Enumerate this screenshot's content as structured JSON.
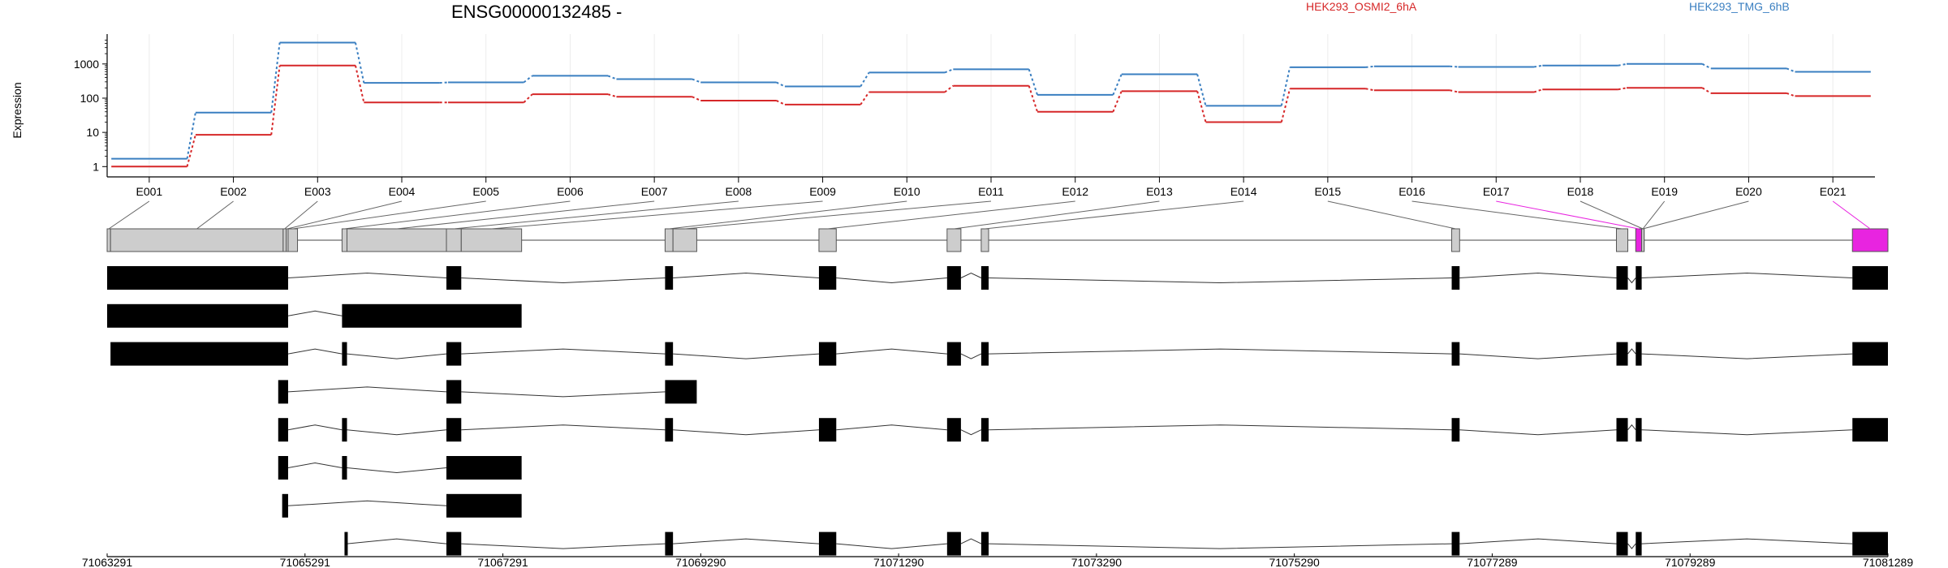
{
  "chart_data": {
    "type": "line",
    "title": "ENSG00000132485 -",
    "ylabel": "Expression",
    "y_scale": "log10",
    "ylim": [
      0.5,
      6000
    ],
    "y_ticks": [
      1,
      10,
      100,
      1000
    ],
    "y_tick_labels": [
      "1",
      "10",
      "100",
      "1000"
    ],
    "grid": "vertical, light",
    "legend": "top-right",
    "categories": [
      "E001",
      "E002",
      "E003",
      "E004",
      "E005",
      "E006",
      "E007",
      "E008",
      "E009",
      "E010",
      "E011",
      "E012",
      "E013",
      "E014",
      "E015",
      "E016",
      "E017",
      "E018",
      "E019",
      "E020",
      "E021"
    ],
    "series": [
      {
        "name": "HEK293_OSMI2_6hA",
        "color": "#d62728",
        "values": [
          1,
          8.5,
          900,
          75,
          75,
          130,
          110,
          85,
          65,
          150,
          230,
          40,
          160,
          20,
          190,
          170,
          150,
          180,
          200,
          140,
          115
        ]
      },
      {
        "name": "HEK293_TMG_6hB",
        "color": "#3a7fc1",
        "values": [
          1.7,
          38,
          4200,
          280,
          290,
          450,
          360,
          290,
          220,
          560,
          700,
          125,
          500,
          60,
          800,
          850,
          820,
          900,
          1000,
          740,
          590
        ]
      }
    ],
    "genomic_axis": {
      "tick_labels": [
        "71063291",
        "71065291",
        "71067291",
        "71069290",
        "71071290",
        "71073290",
        "71075290",
        "71077289",
        "71079289",
        "71081289"
      ],
      "range": [
        71063291,
        71081289
      ]
    },
    "exon_bins": [
      {
        "id": "E001",
        "start": 71063291,
        "end": 71063325
      },
      {
        "id": "E002",
        "start": 71063325,
        "end": 71065070
      },
      {
        "id": "E003",
        "start": 71065070,
        "end": 71065100
      },
      {
        "id": "E004",
        "start": 71065100,
        "end": 71065120
      },
      {
        "id": "E005",
        "start": 71065120,
        "end": 71065215
      },
      {
        "id": "E006",
        "start": 71065665,
        "end": 71065715
      },
      {
        "id": "E007",
        "start": 71065715,
        "end": 71066720
      },
      {
        "id": "E008",
        "start": 71066720,
        "end": 71066870
      },
      {
        "id": "E009",
        "start": 71066870,
        "end": 71067480
      },
      {
        "id": "E010",
        "start": 71068930,
        "end": 71069010
      },
      {
        "id": "E011",
        "start": 71069010,
        "end": 71069250
      },
      {
        "id": "E012",
        "start": 71070485,
        "end": 71070660
      },
      {
        "id": "E013",
        "start": 71071780,
        "end": 71071920
      },
      {
        "id": "E014",
        "start": 71072125,
        "end": 71072200
      },
      {
        "id": "E015",
        "start": 71076880,
        "end": 71076960
      },
      {
        "id": "E016",
        "start": 71078545,
        "end": 71078660
      },
      {
        "id": "E017",
        "start": 71078740,
        "end": 71078800
      },
      {
        "id": "E018",
        "start": 71078800,
        "end": 71078800
      },
      {
        "id": "E019",
        "start": 71078800,
        "end": 71078800
      },
      {
        "id": "E020",
        "start": 71078800,
        "end": 71078800
      },
      {
        "id": "E021",
        "start": 71080930,
        "end": 71081289
      }
    ],
    "highlighted_bins": [
      "E017",
      "E021"
    ],
    "highlight_color": "#e824e0",
    "transcripts": [
      [
        [
          71063291,
          71065120
        ],
        [
          71066720,
          71066870
        ],
        [
          71068930,
          71069010
        ],
        [
          71070485,
          71070660
        ],
        [
          71071780,
          71071920
        ],
        [
          71072125,
          71072200
        ],
        [
          71076880,
          71076960
        ],
        [
          71078545,
          71078660
        ],
        [
          71078740,
          71078800
        ],
        [
          71080930,
          71081289
        ]
      ],
      [
        [
          71063291,
          71065120
        ],
        [
          71065665,
          71067480
        ]
      ],
      [
        [
          71063325,
          71065120
        ],
        [
          71065665,
          71065715
        ],
        [
          71066720,
          71066870
        ],
        [
          71068930,
          71069010
        ],
        [
          71070485,
          71070660
        ],
        [
          71071780,
          71071920
        ],
        [
          71072125,
          71072200
        ],
        [
          71076880,
          71076960
        ],
        [
          71078545,
          71078660
        ],
        [
          71078740,
          71078800
        ],
        [
          71080930,
          71081289
        ]
      ],
      [
        [
          71065020,
          71065120
        ],
        [
          71066720,
          71066870
        ],
        [
          71068930,
          71069250
        ]
      ],
      [
        [
          71065020,
          71065120
        ],
        [
          71065665,
          71065715
        ],
        [
          71066720,
          71066870
        ],
        [
          71068930,
          71069010
        ],
        [
          71070485,
          71070660
        ],
        [
          71071780,
          71071920
        ],
        [
          71072125,
          71072200
        ],
        [
          71076880,
          71076960
        ],
        [
          71078545,
          71078660
        ],
        [
          71078740,
          71078800
        ],
        [
          71080930,
          71081289
        ]
      ],
      [
        [
          71065020,
          71065120
        ],
        [
          71065665,
          71065715
        ],
        [
          71066720,
          71067480
        ]
      ],
      [
        [
          71065060,
          71065120
        ],
        [
          71066720,
          71067480
        ]
      ],
      [
        [
          71065690,
          71065715
        ],
        [
          71066720,
          71066870
        ],
        [
          71068930,
          71069010
        ],
        [
          71070485,
          71070660
        ],
        [
          71071780,
          71071920
        ],
        [
          71072125,
          71072200
        ],
        [
          71076880,
          71076960
        ],
        [
          71078545,
          71078660
        ],
        [
          71078740,
          71078800
        ],
        [
          71080930,
          71081289
        ]
      ]
    ]
  }
}
